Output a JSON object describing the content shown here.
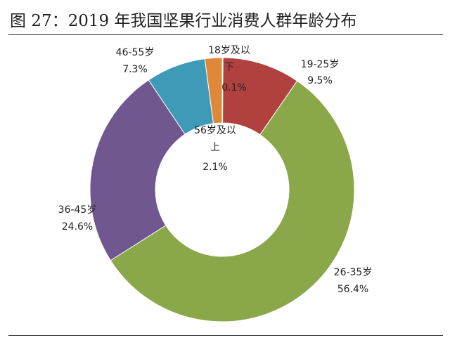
{
  "title": "图 27：2019 年我国坚果行业消费人群年龄分布",
  "chart_data": {
    "type": "pie",
    "subtype": "donut",
    "title": "图 27：2019 年我国坚果行业消费人群年龄分布",
    "categories": [
      "18岁及以下",
      "19-25岁",
      "26-35岁",
      "36-45岁",
      "46-55岁",
      "56岁及以上"
    ],
    "values": [
      0.1,
      9.5,
      56.4,
      24.6,
      7.3,
      2.1
    ],
    "labels": [
      "0.1%",
      "9.5%",
      "56.4%",
      "24.6%",
      "7.3%",
      "2.1%"
    ],
    "colors": [
      "#b0413e",
      "#b0413e",
      "#8aa84a",
      "#70578f",
      "#3f9ab8",
      "#e0883a"
    ],
    "start": "12 o'clock, clockwise",
    "legend": "none"
  }
}
